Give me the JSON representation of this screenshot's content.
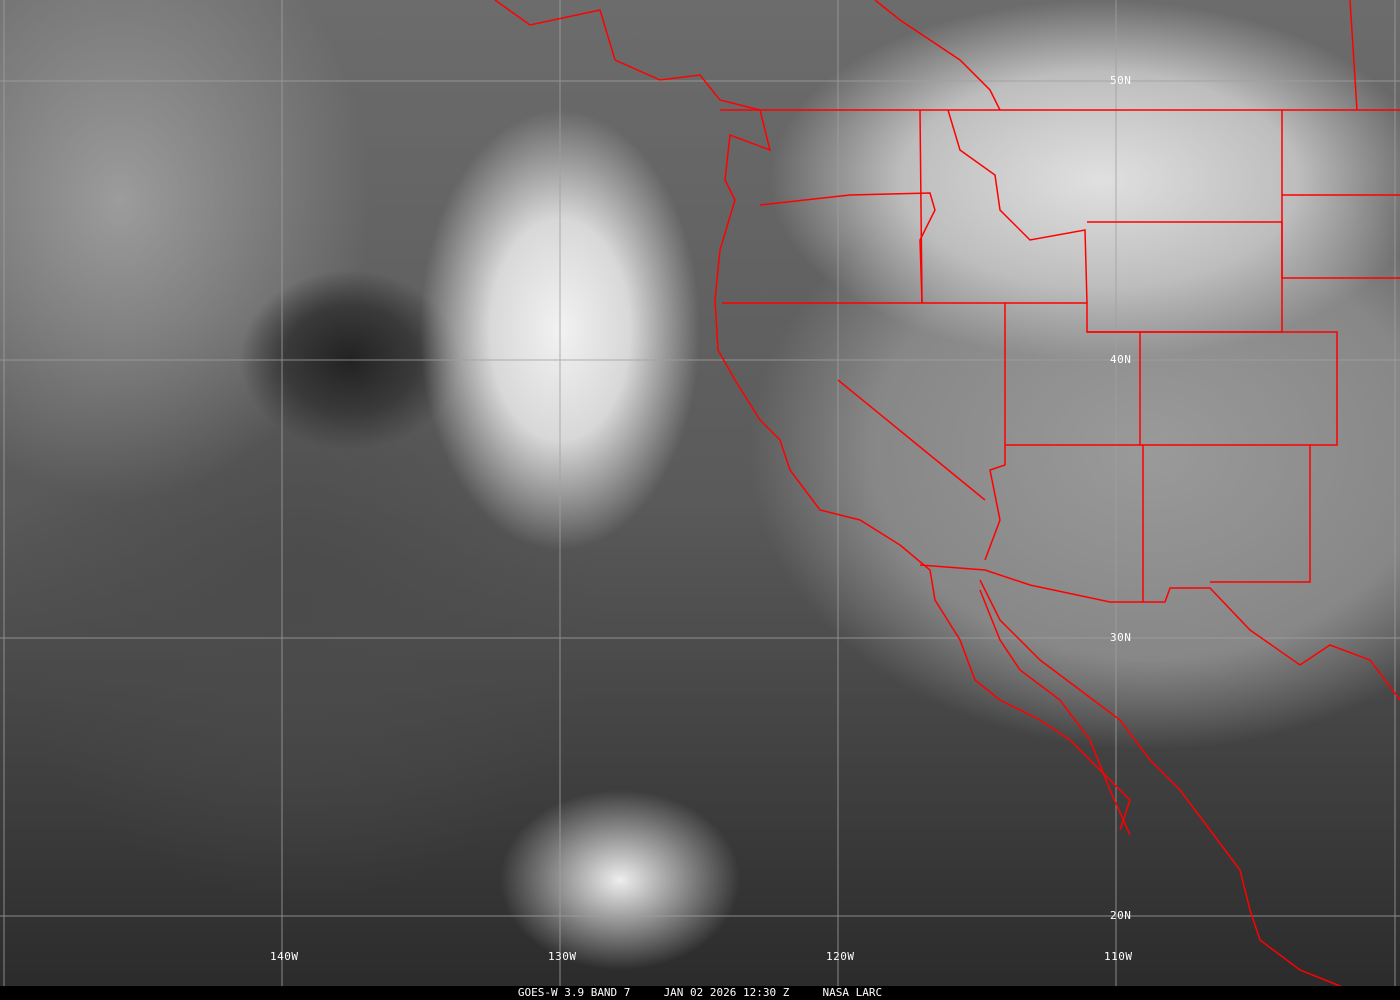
{
  "image": {
    "caption": {
      "satellite": "GOES-W 3.9 BAND 7",
      "datetime": "JAN 02 2026 12:30 Z",
      "source": "NASA LARC"
    },
    "longitude_labels": [
      "140W",
      "130W",
      "120W",
      "110W"
    ],
    "latitude_labels": [
      "50N",
      "40N",
      "30N",
      "20N"
    ],
    "colors": {
      "borders": "#ff0000",
      "grid": "#a0a0a0",
      "text": "#ffffff"
    }
  }
}
